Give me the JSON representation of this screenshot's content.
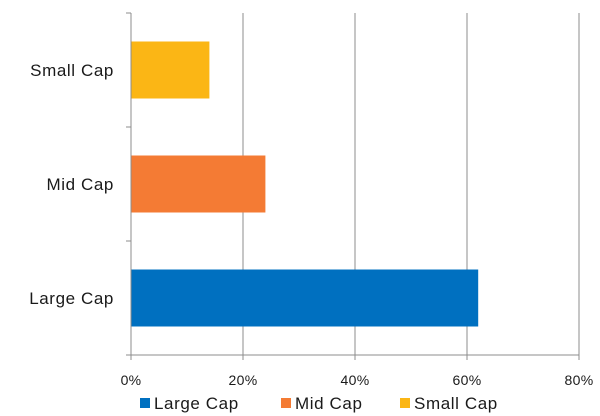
{
  "chart_data": {
    "type": "bar",
    "orientation": "horizontal",
    "title": "",
    "xlabel": "",
    "ylabel": "",
    "categories": [
      "Large Cap",
      "Mid Cap",
      "Small Cap"
    ],
    "values": [
      0.62,
      0.24,
      0.14
    ],
    "colors": [
      "#0070c0",
      "#f47b34",
      "#fbb615"
    ],
    "xlim": [
      0,
      0.8
    ],
    "x_ticks": [
      0,
      0.2,
      0.4,
      0.6,
      0.8
    ],
    "x_tick_labels": [
      "0%",
      "20%",
      "40%",
      "60%",
      "80%"
    ],
    "grid": "vertical",
    "legend": {
      "position": "bottom",
      "entries": [
        "Large Cap",
        "Mid Cap",
        "Small Cap"
      ]
    }
  }
}
